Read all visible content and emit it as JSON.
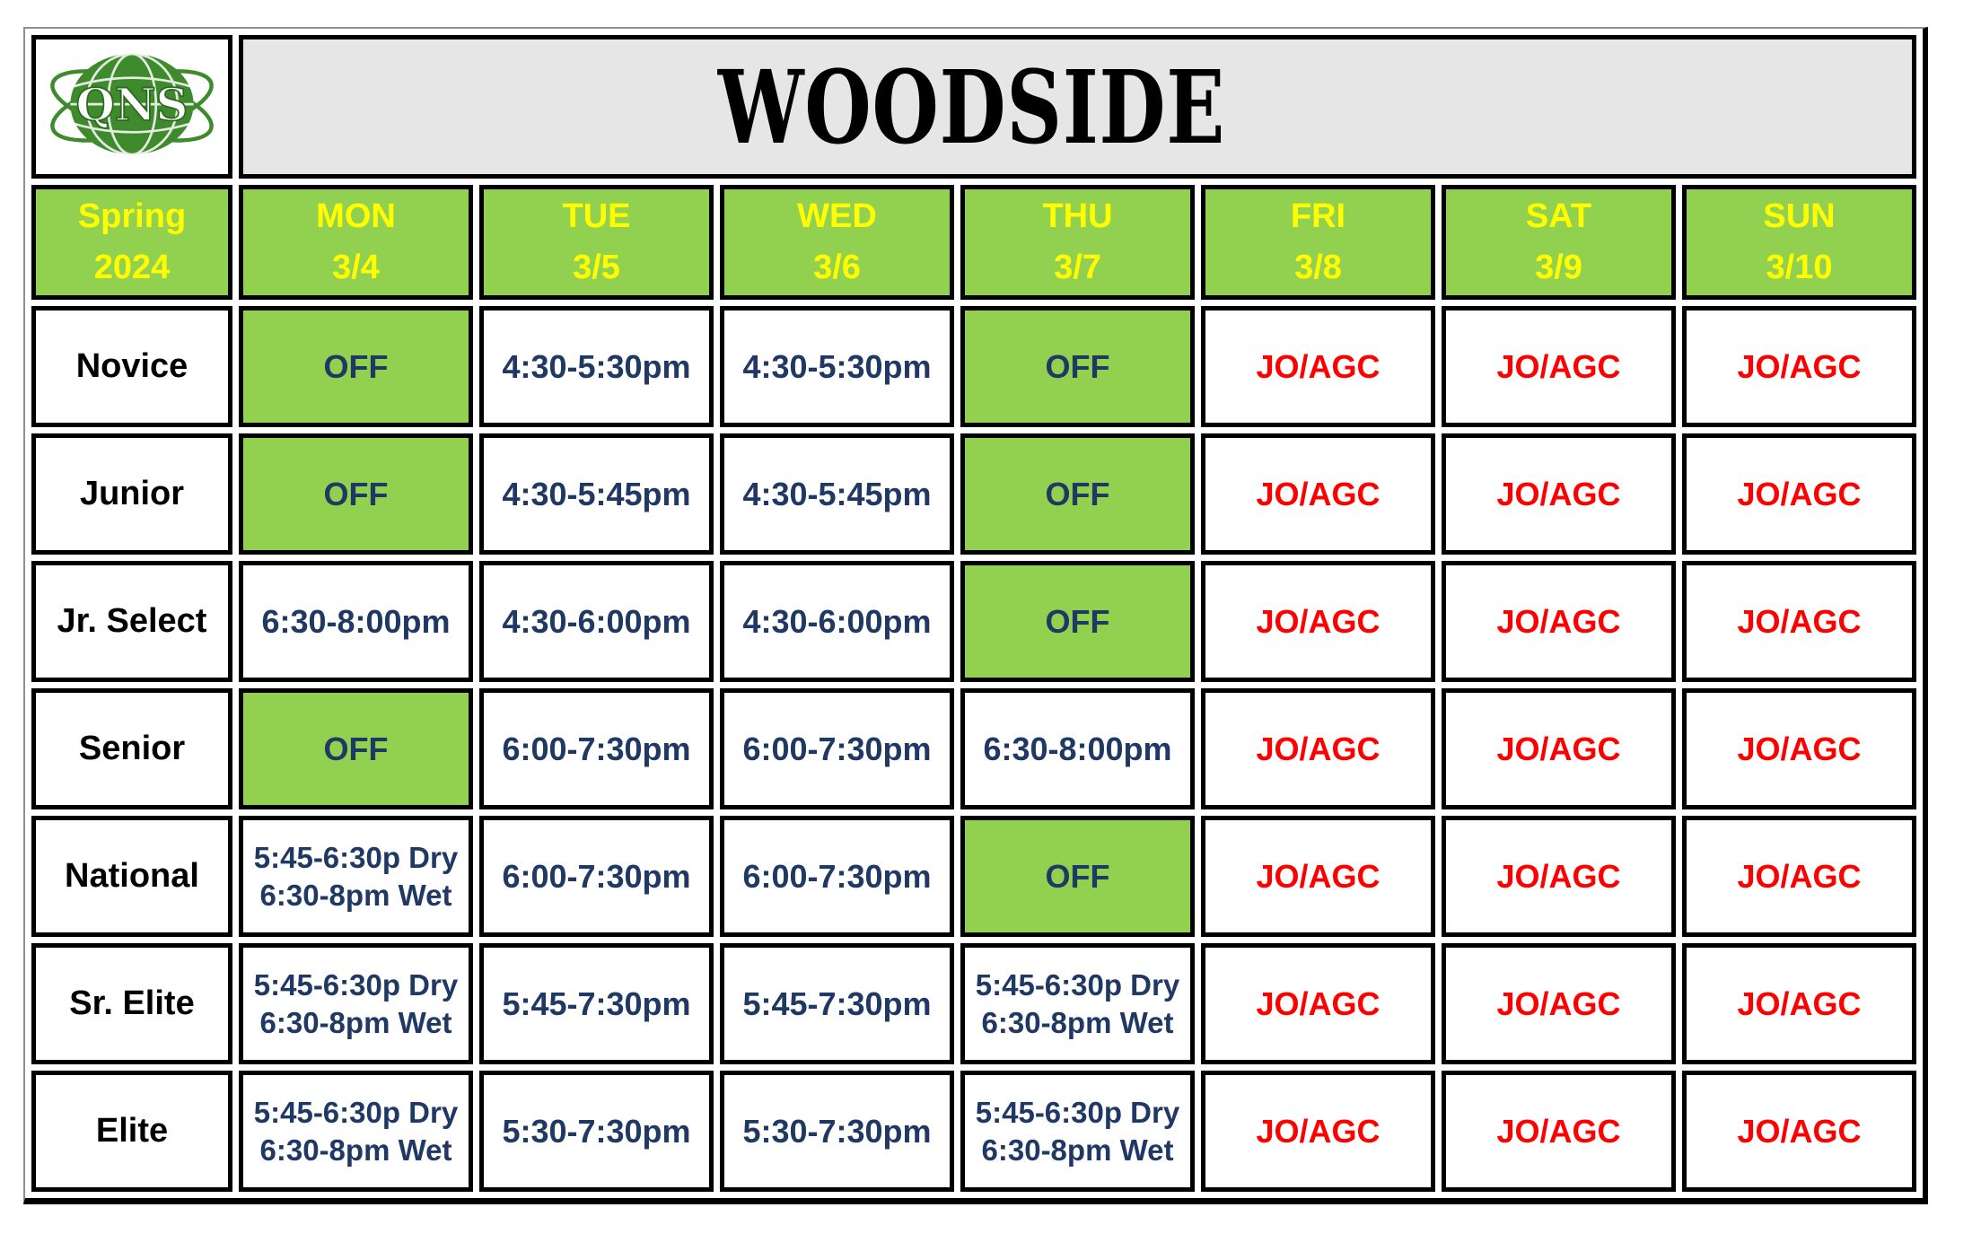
{
  "palette": {
    "header_green": "#92d050",
    "header_yellow": "#ffff00",
    "time_navy": "#1f3864",
    "meet_red": "#ff0000",
    "title_gray_bg": "#e7e6e6",
    "logo_green": "#3f8a2d",
    "border_black": "#000000"
  },
  "logo": {
    "text": "QNS"
  },
  "title": "WOODSIDE",
  "season": {
    "line1": "Spring",
    "line2": "2024"
  },
  "days": [
    {
      "name": "MON",
      "date": "3/4"
    },
    {
      "name": "TUE",
      "date": "3/5"
    },
    {
      "name": "WED",
      "date": "3/6"
    },
    {
      "name": "THU",
      "date": "3/7"
    },
    {
      "name": "FRI",
      "date": "3/8"
    },
    {
      "name": "SAT",
      "date": "3/9"
    },
    {
      "name": "SUN",
      "date": "3/10"
    }
  ],
  "rows": [
    {
      "group": "Novice",
      "cells": [
        {
          "lines": [
            "OFF"
          ],
          "style": "off"
        },
        {
          "lines": [
            "4:30-5:30pm"
          ],
          "style": "time"
        },
        {
          "lines": [
            "4:30-5:30pm"
          ],
          "style": "time"
        },
        {
          "lines": [
            "OFF"
          ],
          "style": "off"
        },
        {
          "lines": [
            "JO/AGC"
          ],
          "style": "meet"
        },
        {
          "lines": [
            "JO/AGC"
          ],
          "style": "meet"
        },
        {
          "lines": [
            "JO/AGC"
          ],
          "style": "meet"
        }
      ]
    },
    {
      "group": "Junior",
      "cells": [
        {
          "lines": [
            "OFF"
          ],
          "style": "off"
        },
        {
          "lines": [
            "4:30-5:45pm"
          ],
          "style": "time"
        },
        {
          "lines": [
            "4:30-5:45pm"
          ],
          "style": "time"
        },
        {
          "lines": [
            "OFF"
          ],
          "style": "off"
        },
        {
          "lines": [
            "JO/AGC"
          ],
          "style": "meet"
        },
        {
          "lines": [
            "JO/AGC"
          ],
          "style": "meet"
        },
        {
          "lines": [
            "JO/AGC"
          ],
          "style": "meet"
        }
      ]
    },
    {
      "group": "Jr. Select",
      "cells": [
        {
          "lines": [
            "6:30-8:00pm"
          ],
          "style": "time"
        },
        {
          "lines": [
            "4:30-6:00pm"
          ],
          "style": "time"
        },
        {
          "lines": [
            "4:30-6:00pm"
          ],
          "style": "time"
        },
        {
          "lines": [
            "OFF"
          ],
          "style": "off"
        },
        {
          "lines": [
            "JO/AGC"
          ],
          "style": "meet"
        },
        {
          "lines": [
            "JO/AGC"
          ],
          "style": "meet"
        },
        {
          "lines": [
            "JO/AGC"
          ],
          "style": "meet"
        }
      ]
    },
    {
      "group": "Senior",
      "cells": [
        {
          "lines": [
            "OFF"
          ],
          "style": "off"
        },
        {
          "lines": [
            "6:00-7:30pm"
          ],
          "style": "time"
        },
        {
          "lines": [
            "6:00-7:30pm"
          ],
          "style": "time"
        },
        {
          "lines": [
            "6:30-8:00pm"
          ],
          "style": "time"
        },
        {
          "lines": [
            "JO/AGC"
          ],
          "style": "meet"
        },
        {
          "lines": [
            "JO/AGC"
          ],
          "style": "meet"
        },
        {
          "lines": [
            "JO/AGC"
          ],
          "style": "meet"
        }
      ]
    },
    {
      "group": "National",
      "cells": [
        {
          "lines": [
            "5:45-6:30p Dry",
            "6:30-8pm Wet"
          ],
          "style": "time"
        },
        {
          "lines": [
            "6:00-7:30pm"
          ],
          "style": "time"
        },
        {
          "lines": [
            "6:00-7:30pm"
          ],
          "style": "time"
        },
        {
          "lines": [
            "OFF"
          ],
          "style": "off"
        },
        {
          "lines": [
            "JO/AGC"
          ],
          "style": "meet"
        },
        {
          "lines": [
            "JO/AGC"
          ],
          "style": "meet"
        },
        {
          "lines": [
            "JO/AGC"
          ],
          "style": "meet"
        }
      ]
    },
    {
      "group": "Sr. Elite",
      "cells": [
        {
          "lines": [
            "5:45-6:30p Dry",
            "6:30-8pm Wet"
          ],
          "style": "time"
        },
        {
          "lines": [
            "5:45-7:30pm"
          ],
          "style": "time"
        },
        {
          "lines": [
            "5:45-7:30pm"
          ],
          "style": "time"
        },
        {
          "lines": [
            "5:45-6:30p Dry",
            "6:30-8pm Wet"
          ],
          "style": "time"
        },
        {
          "lines": [
            "JO/AGC"
          ],
          "style": "meet"
        },
        {
          "lines": [
            "JO/AGC"
          ],
          "style": "meet"
        },
        {
          "lines": [
            "JO/AGC"
          ],
          "style": "meet"
        }
      ]
    },
    {
      "group": "Elite",
      "cells": [
        {
          "lines": [
            "5:45-6:30p Dry",
            "6:30-8pm Wet"
          ],
          "style": "time"
        },
        {
          "lines": [
            "5:30-7:30pm"
          ],
          "style": "time"
        },
        {
          "lines": [
            "5:30-7:30pm"
          ],
          "style": "time"
        },
        {
          "lines": [
            "5:45-6:30p Dry",
            "6:30-8pm Wet"
          ],
          "style": "time"
        },
        {
          "lines": [
            "JO/AGC"
          ],
          "style": "meet"
        },
        {
          "lines": [
            "JO/AGC"
          ],
          "style": "meet"
        },
        {
          "lines": [
            "JO/AGC"
          ],
          "style": "meet"
        }
      ]
    }
  ]
}
